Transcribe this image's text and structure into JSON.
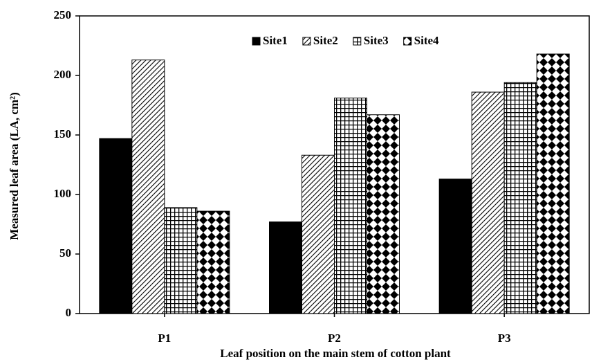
{
  "chart_data": {
    "type": "bar",
    "x_label": "Leaf position on the main stem of cotton plant",
    "y_label": "Measured leaf area (LA, cm²)",
    "categories": [
      "P1",
      "P2",
      "P3"
    ],
    "series": [
      {
        "name": "Site1",
        "color": "#000000",
        "pattern": "solid",
        "values": [
          147,
          77,
          113
        ]
      },
      {
        "name": "Site2",
        "color": "#000000",
        "pattern": "diagonal",
        "values": [
          213,
          133,
          186
        ]
      },
      {
        "name": "Site3",
        "color": "#000000",
        "pattern": "grid",
        "values": [
          89,
          181,
          194
        ]
      },
      {
        "name": "Site4",
        "color": "#000000",
        "pattern": "diamond",
        "values": [
          86,
          167,
          218
        ]
      }
    ],
    "ylim": [
      0,
      250
    ],
    "yticks": [
      0,
      50,
      100,
      150,
      200,
      250
    ],
    "legend": "top"
  }
}
